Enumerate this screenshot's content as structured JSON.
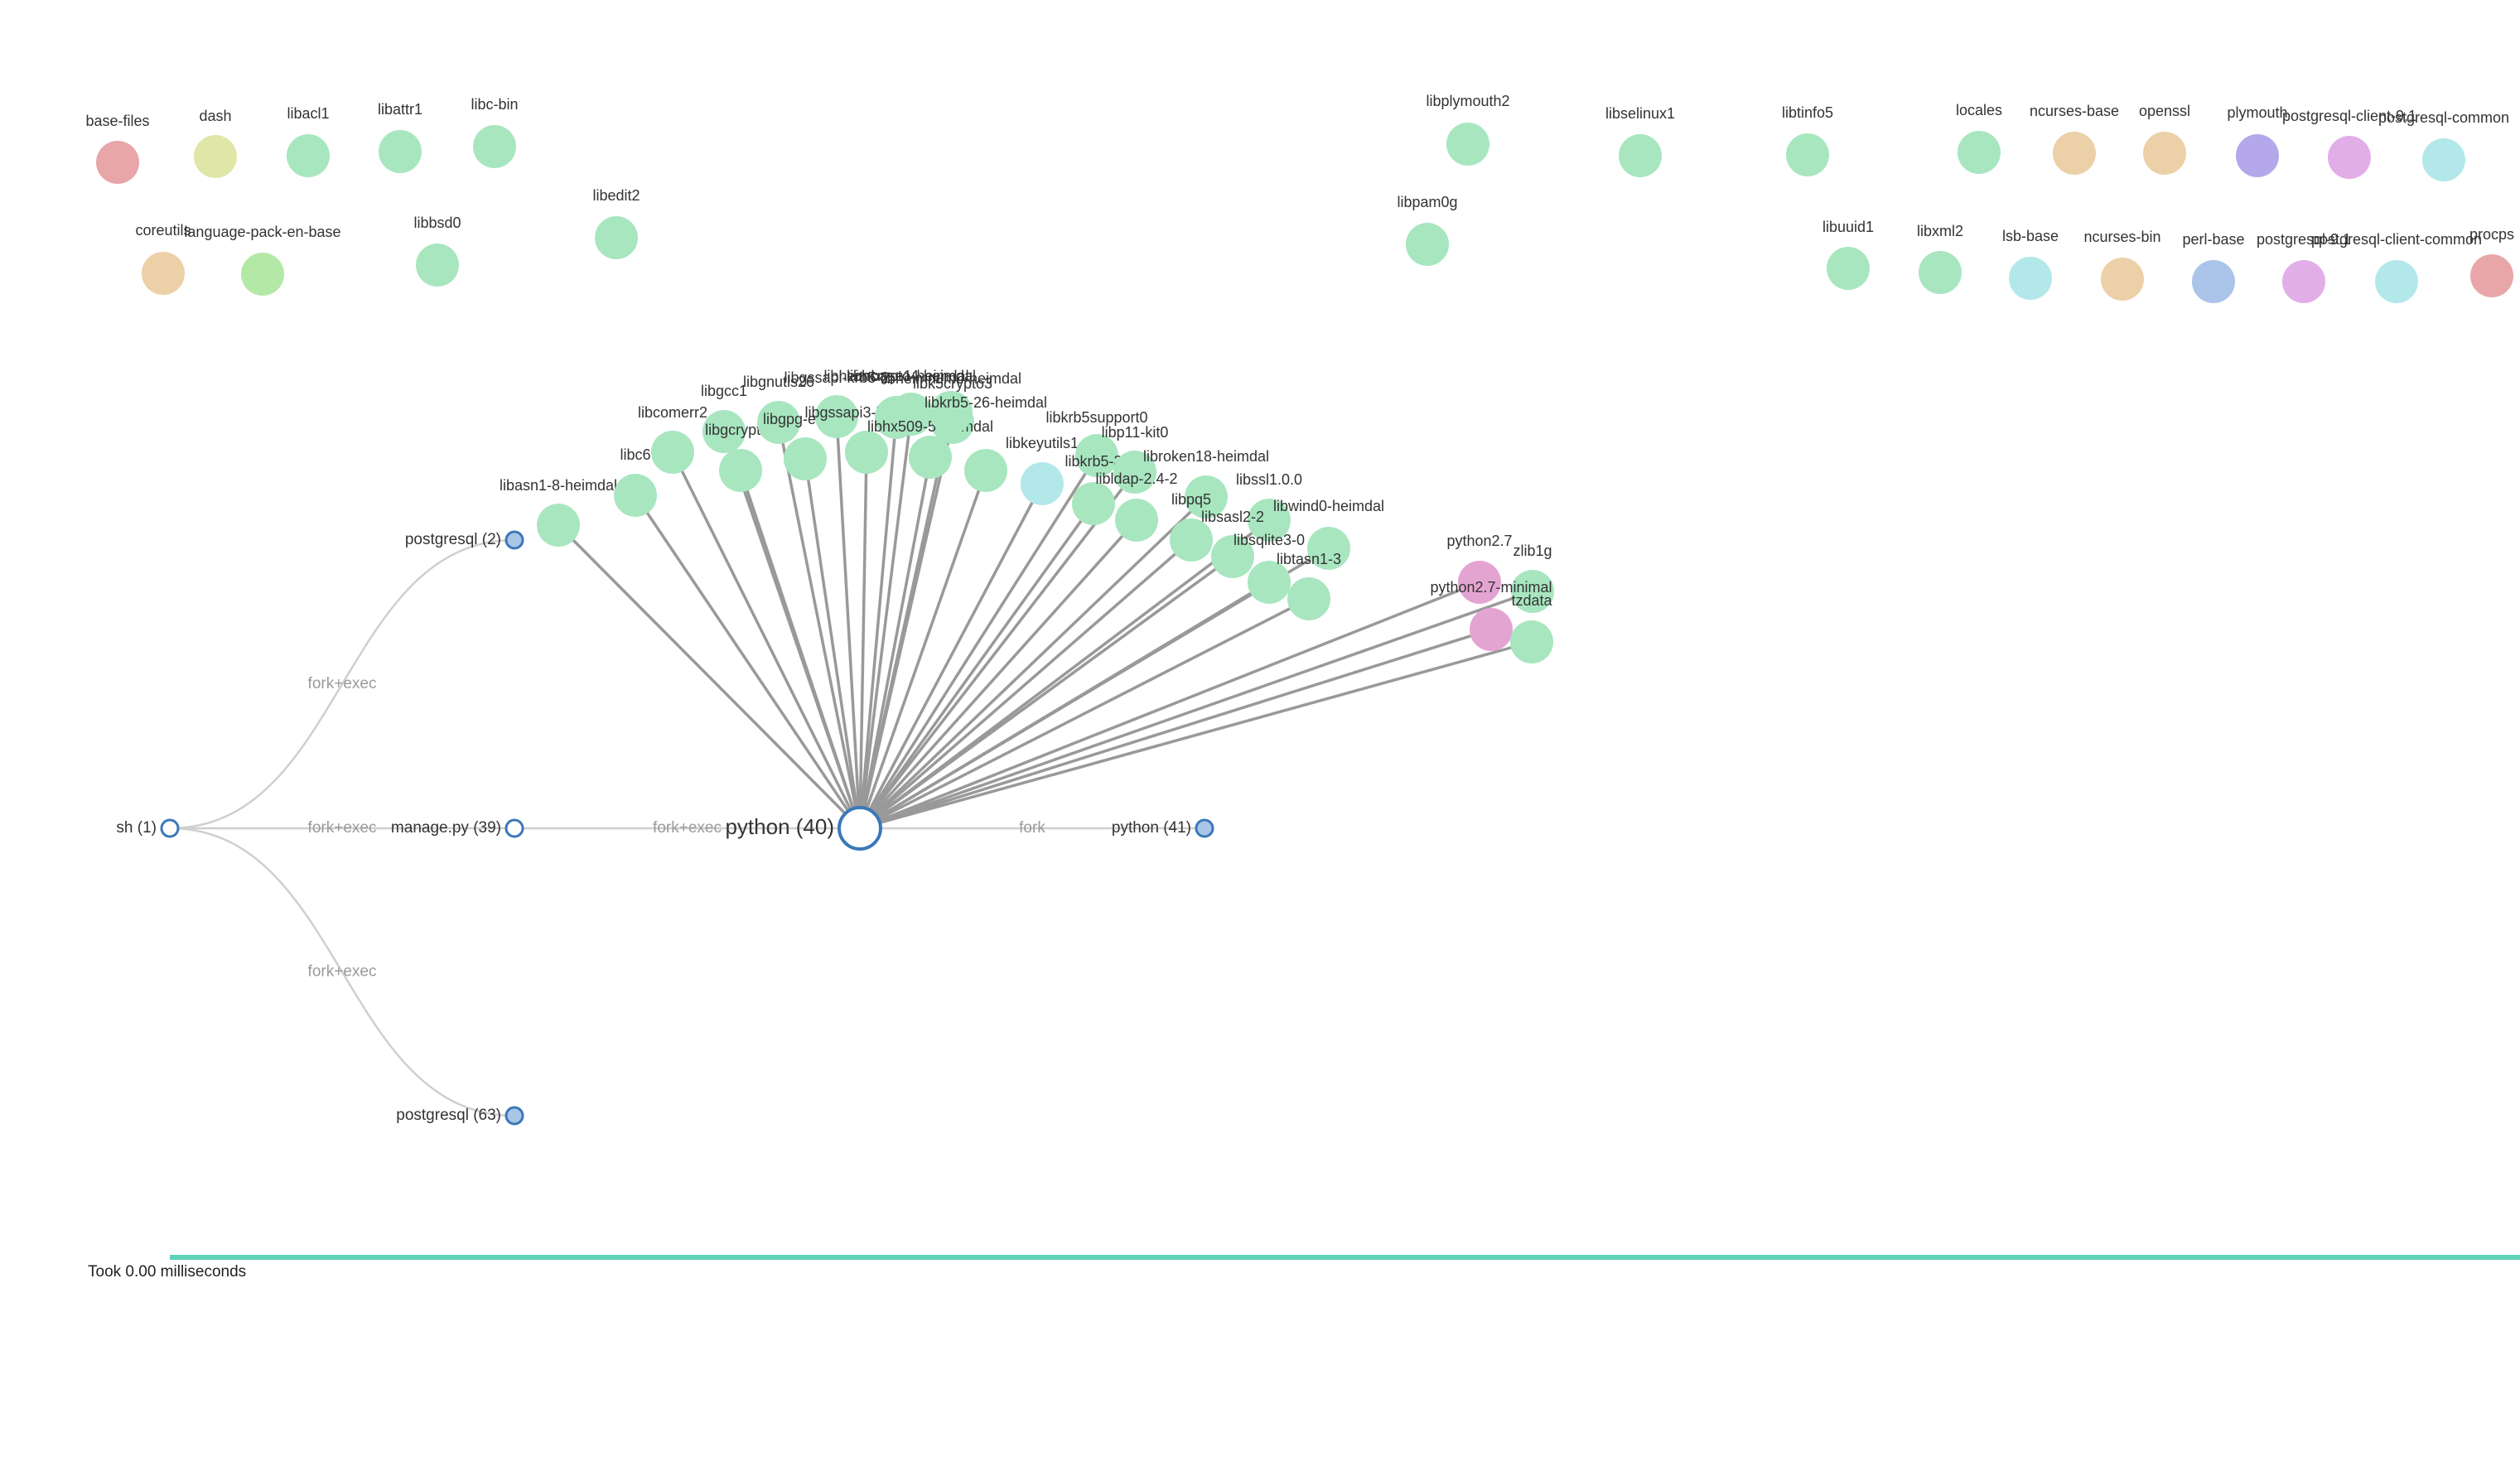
{
  "colors": {
    "lib": "#a8e6c0",
    "base-files": "#e8a6a8",
    "dash": "#dfe6a8",
    "coreutils": "#ecd0a8",
    "language-pack-en-base": "#b4e8a6",
    "libkeyutils1": "#b2e8ea",
    "python": "#e4a4d2",
    "locales": "#a8e6c0",
    "ncurses": "#ecd0a8",
    "openssl": "#ecd0a8",
    "plymouth": "#b4a8ea",
    "postgresql-client": "#e2aee8",
    "postgresql-common": "#b2e8ea",
    "lsb-base": "#b2e8ea",
    "perl-base": "#aac4ea",
    "procps": "#e8a6a8",
    "proc-stroke": "#3a78b8",
    "proc-fill-filled": "#a9c6e6",
    "spoke": "#999999",
    "tree-link": "#cfcfcf",
    "timeline": "#5fd3b7"
  },
  "packages": [
    {
      "label": "base-files",
      "color": "base-files"
    },
    {
      "label": "dash",
      "color": "dash"
    },
    {
      "label": "libacl1",
      "color": "lib"
    },
    {
      "label": "libattr1",
      "color": "lib"
    },
    {
      "label": "libc-bin",
      "color": "lib"
    },
    {
      "label": "coreutils",
      "color": "coreutils"
    },
    {
      "label": "language-pack-en-base",
      "color": "language-pack-en-base"
    },
    {
      "label": "libbsd0",
      "color": "lib"
    },
    {
      "label": "libedit2",
      "color": "lib"
    },
    {
      "label": "libplymouth2",
      "color": "lib"
    },
    {
      "label": "libpam0g",
      "color": "lib"
    },
    {
      "label": "libselinux1",
      "color": "lib"
    },
    {
      "label": "libtinfo5",
      "color": "lib"
    },
    {
      "label": "locales",
      "color": "locales"
    },
    {
      "label": "ncurses-base",
      "color": "ncurses"
    },
    {
      "label": "openssl",
      "color": "openssl"
    },
    {
      "label": "plymouth",
      "color": "plymouth"
    },
    {
      "label": "postgresql-client-9.1",
      "color": "postgresql-client"
    },
    {
      "label": "postgresql-common",
      "color": "postgresql-common"
    },
    {
      "label": "libuuid1",
      "color": "lib"
    },
    {
      "label": "libxml2",
      "color": "lib"
    },
    {
      "label": "lsb-base",
      "color": "lsb-base"
    },
    {
      "label": "ncurses-bin",
      "color": "ncurses"
    },
    {
      "label": "perl-base",
      "color": "perl-base"
    },
    {
      "label": "postgresql-9.1",
      "color": "postgresql-client"
    },
    {
      "label": "postgresql-client-common",
      "color": "postgresql-common"
    },
    {
      "label": "procps",
      "color": "procps"
    }
  ],
  "libraries": [
    {
      "label": "libasn1-8-heimdal",
      "color": "lib"
    },
    {
      "label": "libc6",
      "color": "lib"
    },
    {
      "label": "libcomerr2",
      "color": "lib"
    },
    {
      "label": "libgcc1",
      "color": "lib"
    },
    {
      "label": "libgcrypt11",
      "color": "lib"
    },
    {
      "label": "libgnutls26",
      "color": "lib"
    },
    {
      "label": "libgpg-error0",
      "color": "lib"
    },
    {
      "label": "libgssapi-krb5-2",
      "color": "lib"
    },
    {
      "label": "libgssapi3-heimdal",
      "color": "lib"
    },
    {
      "label": "libheimbase1-heimdal",
      "color": "lib"
    },
    {
      "label": "libk5crypto3",
      "color": "lib"
    },
    {
      "label": "libhcrypto4-heimdal",
      "color": "lib"
    },
    {
      "label": "libhx509-5-heimdal",
      "color": "lib"
    },
    {
      "label": "libheimntlm0-heimdal",
      "color": "lib"
    },
    {
      "label": "libkrb5-26-heimdal",
      "color": "lib"
    },
    {
      "label": "libkeyutils1",
      "color": "libkeyutils1"
    },
    {
      "label": "libkrb5support0",
      "color": "lib"
    },
    {
      "label": "libkrb5-3",
      "color": "lib"
    },
    {
      "label": "libp11-kit0",
      "color": "lib"
    },
    {
      "label": "libldap-2.4-2",
      "color": "lib"
    },
    {
      "label": "libroken18-heimdal",
      "color": "lib"
    },
    {
      "label": "libpq5",
      "color": "lib"
    },
    {
      "label": "libssl1.0.0",
      "color": "lib"
    },
    {
      "label": "libsasl2-2",
      "color": "lib"
    },
    {
      "label": "libwind0-heimdal",
      "color": "lib"
    },
    {
      "label": "libsqlite3-0",
      "color": "lib"
    },
    {
      "label": "libtasn1-3",
      "color": "lib"
    },
    {
      "label": "python2.7",
      "color": "python"
    },
    {
      "label": "zlib1g",
      "color": "lib"
    },
    {
      "label": "python2.7-minimal",
      "color": "python"
    },
    {
      "label": "tzdata",
      "color": "lib"
    }
  ],
  "processes": [
    {
      "label": "sh (1)",
      "filled": false,
      "size": "small"
    },
    {
      "label": "postgresql (2)",
      "filled": true,
      "size": "small"
    },
    {
      "label": "manage.py (39)",
      "filled": false,
      "size": "small"
    },
    {
      "label": "postgresql (63)",
      "filled": true,
      "size": "small"
    },
    {
      "label": "python (40)",
      "filled": false,
      "size": "large"
    },
    {
      "label": "python (41)",
      "filled": true,
      "size": "small"
    }
  ],
  "edges": [
    {
      "from": "sh (1)",
      "to": "postgresql (2)",
      "label": "fork+exec"
    },
    {
      "from": "sh (1)",
      "to": "manage.py (39)",
      "label": "fork+exec"
    },
    {
      "from": "sh (1)",
      "to": "postgresql (63)",
      "label": "fork+exec"
    },
    {
      "from": "manage.py (39)",
      "to": "python (40)",
      "label": "fork+exec"
    },
    {
      "from": "python (40)",
      "to": "python (41)",
      "label": "fork"
    }
  ],
  "status": {
    "text": "Took 0.00 milliseconds"
  }
}
